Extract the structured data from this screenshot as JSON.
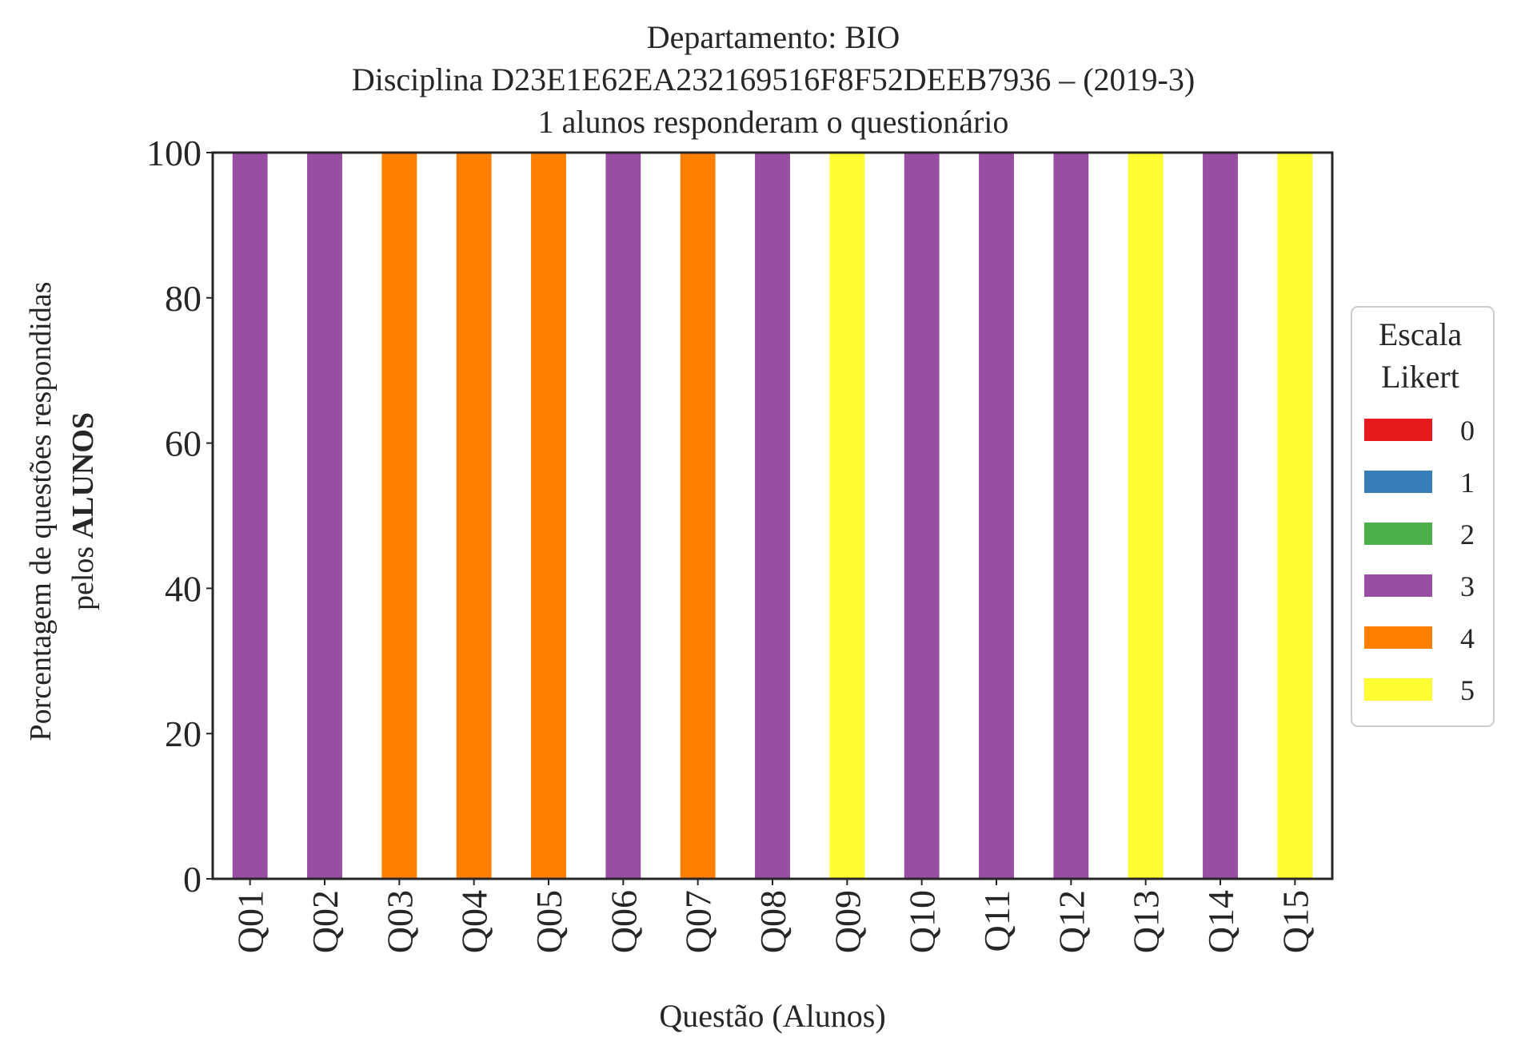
{
  "chart_data": {
    "type": "bar",
    "stacked": true,
    "title": {
      "line1": "Departamento: BIO",
      "line2": "Disciplina D23E1E62EA232169516F8F52DEEB7936 – (2019-3)",
      "line3": "1 alunos responderam o questionário"
    },
    "ylabel": {
      "line1": "Porcentagem de questões respondidas",
      "line2_prefix": "pelos ",
      "line2_bold": "ALUNOS"
    },
    "xlabel": "Questão (Alunos)",
    "ylim": [
      0,
      100
    ],
    "yticks": [
      0,
      20,
      40,
      60,
      80,
      100
    ],
    "categories": [
      "Q01",
      "Q02",
      "Q03",
      "Q04",
      "Q05",
      "Q06",
      "Q07",
      "Q08",
      "Q09",
      "Q10",
      "Q11",
      "Q12",
      "Q13",
      "Q14",
      "Q15"
    ],
    "series": [
      {
        "name": "0",
        "color": "#e41a1c",
        "values": [
          0,
          0,
          0,
          0,
          0,
          0,
          0,
          0,
          0,
          0,
          0,
          0,
          0,
          0,
          0
        ]
      },
      {
        "name": "1",
        "color": "#377eb8",
        "values": [
          0,
          0,
          0,
          0,
          0,
          0,
          0,
          0,
          0,
          0,
          0,
          0,
          0,
          0,
          0
        ]
      },
      {
        "name": "2",
        "color": "#4daf4a",
        "values": [
          0,
          0,
          0,
          0,
          0,
          0,
          0,
          0,
          0,
          0,
          0,
          0,
          0,
          0,
          0
        ]
      },
      {
        "name": "3",
        "color": "#984ea3",
        "values": [
          100,
          100,
          0,
          0,
          0,
          100,
          0,
          100,
          0,
          100,
          100,
          100,
          0,
          100,
          0
        ]
      },
      {
        "name": "4",
        "color": "#ff7f00",
        "values": [
          0,
          0,
          100,
          100,
          100,
          0,
          100,
          0,
          0,
          0,
          0,
          0,
          0,
          0,
          0
        ]
      },
      {
        "name": "5",
        "color": "#ffff33",
        "values": [
          0,
          0,
          0,
          0,
          0,
          0,
          0,
          0,
          100,
          0,
          0,
          0,
          100,
          0,
          100
        ]
      }
    ],
    "legend": {
      "title_line1": "Escala",
      "title_line2": "Likert",
      "placement": "center-right outside"
    },
    "grid": false
  }
}
